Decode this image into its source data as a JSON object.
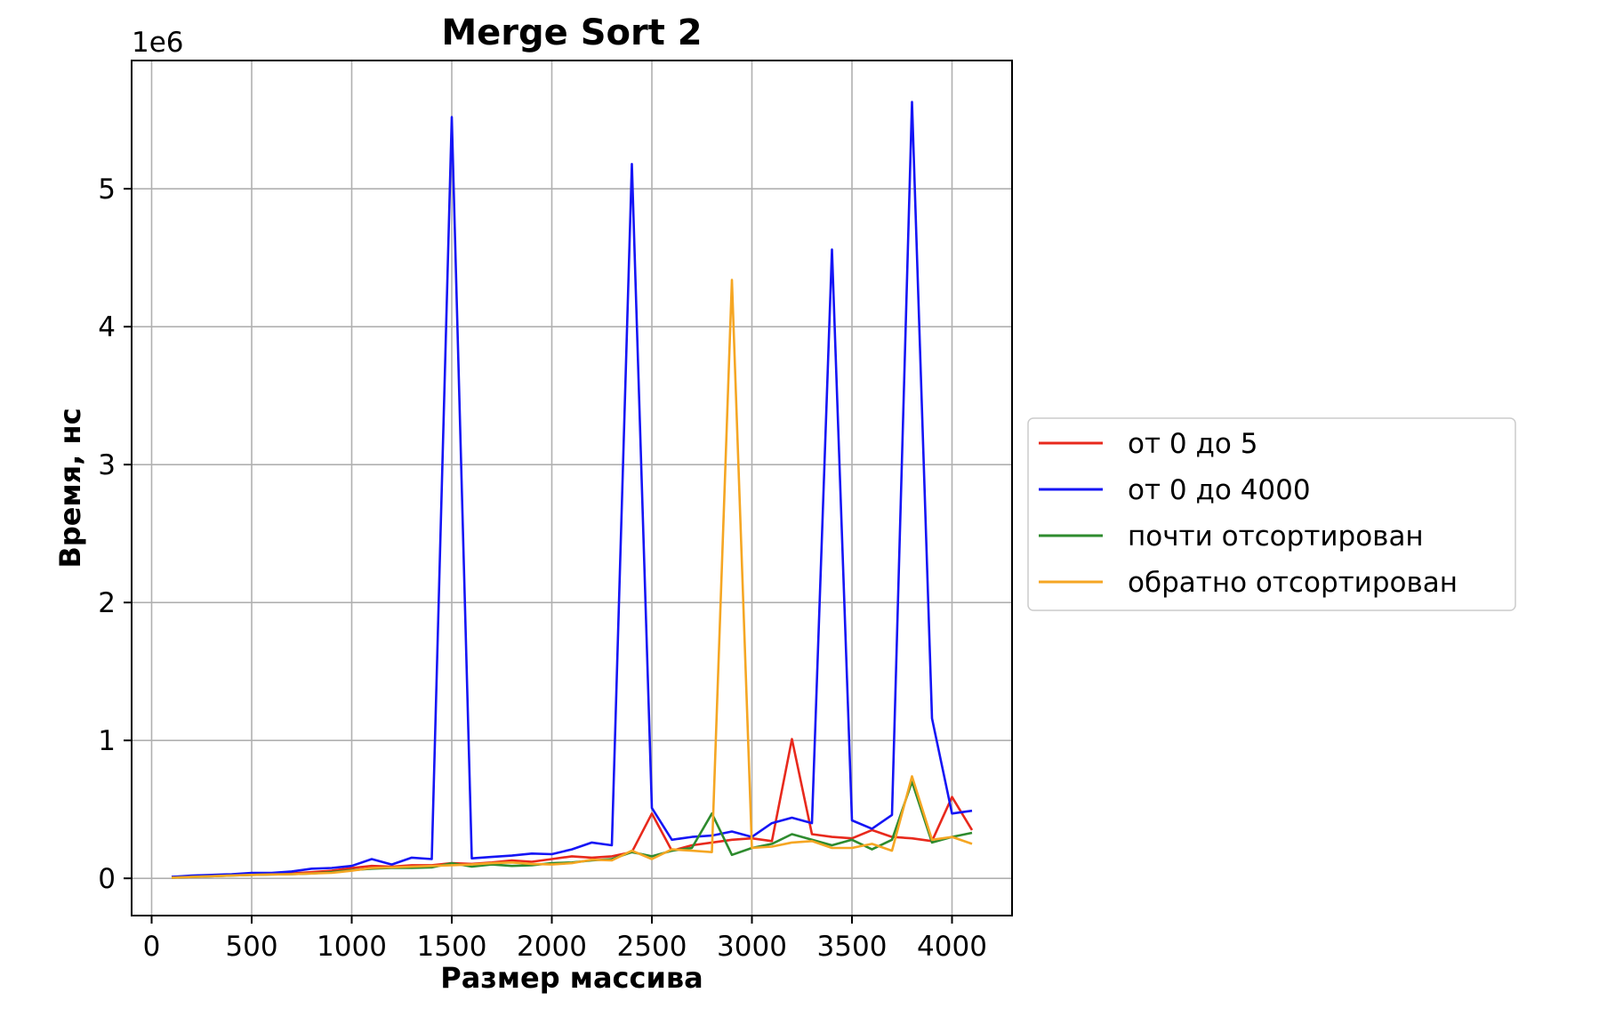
{
  "chart_data": {
    "type": "line",
    "title": "Merge Sort 2",
    "xlabel": "Размер массива",
    "ylabel": "Время, нс",
    "y_offset_label": "1e6",
    "xlim": [
      -100,
      4300
    ],
    "ylim": [
      -270000,
      5930000
    ],
    "x_ticks": [
      0,
      500,
      1000,
      1500,
      2000,
      2500,
      3000,
      3500,
      4000
    ],
    "x_tick_labels": [
      "0",
      "500",
      "1000",
      "1500",
      "2000",
      "2500",
      "3000",
      "3500",
      "4000"
    ],
    "y_ticks": [
      0,
      1000000,
      2000000,
      3000000,
      4000000,
      5000000
    ],
    "y_tick_labels": [
      "0",
      "1",
      "2",
      "3",
      "4",
      "5"
    ],
    "grid": true,
    "legend_position": "outside-right",
    "x": [
      100,
      200,
      300,
      400,
      500,
      600,
      700,
      800,
      900,
      1000,
      1100,
      1200,
      1300,
      1400,
      1500,
      1600,
      1700,
      1800,
      1900,
      2000,
      2100,
      2200,
      2300,
      2400,
      2500,
      2600,
      2700,
      2800,
      2900,
      3000,
      3100,
      3200,
      3300,
      3400,
      3500,
      3600,
      3700,
      3800,
      3900,
      4000,
      4100
    ],
    "series": [
      {
        "name": "от 0 до 5",
        "color": "#e8291c",
        "values": [
          10000,
          15000,
          20000,
          22000,
          28000,
          30000,
          35000,
          45000,
          55000,
          75000,
          90000,
          85000,
          95000,
          95000,
          110000,
          105000,
          115000,
          130000,
          120000,
          140000,
          160000,
          150000,
          160000,
          190000,
          470000,
          200000,
          240000,
          260000,
          280000,
          290000,
          270000,
          1010000,
          320000,
          300000,
          290000,
          350000,
          300000,
          290000,
          270000,
          590000,
          350000
        ]
      },
      {
        "name": "от 0 до 4000",
        "color": "#1515f5",
        "values": [
          10000,
          20000,
          25000,
          30000,
          40000,
          40000,
          50000,
          70000,
          75000,
          90000,
          140000,
          100000,
          150000,
          140000,
          5520000,
          145000,
          155000,
          165000,
          180000,
          175000,
          210000,
          260000,
          240000,
          5180000,
          510000,
          280000,
          300000,
          310000,
          340000,
          300000,
          400000,
          440000,
          400000,
          4560000,
          420000,
          360000,
          460000,
          5630000,
          1160000,
          470000,
          490000
        ]
      },
      {
        "name": "почти отсортирован",
        "color": "#2e8b2e",
        "values": [
          5000,
          10000,
          15000,
          20000,
          25000,
          28000,
          30000,
          35000,
          45000,
          60000,
          70000,
          75000,
          75000,
          80000,
          110000,
          85000,
          100000,
          90000,
          95000,
          110000,
          115000,
          130000,
          140000,
          190000,
          160000,
          200000,
          220000,
          470000,
          170000,
          220000,
          250000,
          320000,
          280000,
          240000,
          280000,
          210000,
          280000,
          700000,
          260000,
          300000,
          330000
        ]
      },
      {
        "name": "обратно отсортирован",
        "color": "#f5a623",
        "values": [
          5000,
          10000,
          15000,
          20000,
          25000,
          28000,
          30000,
          35000,
          40000,
          55000,
          75000,
          80000,
          85000,
          90000,
          95000,
          100000,
          110000,
          115000,
          105000,
          100000,
          110000,
          135000,
          130000,
          200000,
          140000,
          210000,
          200000,
          190000,
          4340000,
          220000,
          230000,
          260000,
          270000,
          220000,
          220000,
          250000,
          200000,
          740000,
          280000,
          300000,
          250000
        ]
      }
    ]
  }
}
